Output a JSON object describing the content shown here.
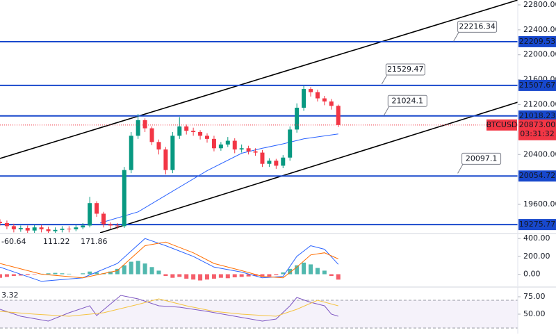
{
  "chart_data": [
    {
      "type": "candlestick",
      "x": [
        0,
        1,
        2,
        3,
        4,
        5,
        6,
        7,
        8,
        9,
        10,
        11,
        12,
        13,
        14,
        15,
        16,
        17,
        18,
        19,
        20,
        21,
        22,
        23,
        24,
        25,
        26,
        27,
        28,
        29,
        30,
        31,
        32,
        33,
        34,
        35,
        36,
        37,
        38,
        39,
        40,
        41,
        42,
        43,
        44,
        45,
        46,
        47,
        48,
        49
      ],
      "open": [
        19320,
        19300,
        19250,
        19200,
        19220,
        19180,
        19230,
        19200,
        19170,
        19190,
        19210,
        19200,
        19230,
        19260,
        19620,
        19450,
        19280,
        19260,
        19250,
        20150,
        20700,
        20950,
        20820,
        20600,
        20480,
        20150,
        20700,
        20850,
        20780,
        20760,
        20700,
        20650,
        20500,
        20560,
        20620,
        20480,
        20500,
        20450,
        20430,
        20250,
        20300,
        20220,
        20350,
        20800,
        21150,
        21450,
        21400,
        21300,
        21250,
        21180
      ],
      "high": [
        19360,
        19340,
        19290,
        19260,
        19260,
        19270,
        19270,
        19240,
        19230,
        19250,
        19250,
        19270,
        19300,
        19720,
        19650,
        19480,
        19310,
        19300,
        20200,
        20760,
        21050,
        20980,
        20850,
        20640,
        20520,
        20760,
        21000,
        20880,
        20830,
        20790,
        20740,
        20700,
        20600,
        20680,
        20660,
        20560,
        20540,
        20500,
        20470,
        20340,
        20330,
        20390,
        20850,
        21220,
        21500,
        21480,
        21440,
        21340,
        21290,
        21200
      ],
      "low": [
        19260,
        19200,
        19150,
        19160,
        19130,
        19140,
        19150,
        19120,
        19130,
        19150,
        19150,
        19170,
        19200,
        19230,
        19400,
        19230,
        19210,
        19200,
        19220,
        20100,
        20650,
        20760,
        20550,
        20400,
        20080,
        20100,
        20650,
        20720,
        20700,
        20640,
        20590,
        20450,
        20460,
        20520,
        20420,
        20430,
        20400,
        20380,
        20200,
        20200,
        20170,
        20180,
        20300,
        20750,
        21100,
        21330,
        21250,
        21190,
        21120,
        20840
      ],
      "close": [
        19300,
        19250,
        19200,
        19220,
        19180,
        19230,
        19200,
        19170,
        19190,
        19210,
        19200,
        19230,
        19260,
        19620,
        19450,
        19280,
        19260,
        19250,
        20150,
        20700,
        20950,
        20820,
        20600,
        20480,
        20150,
        20700,
        20850,
        20780,
        20760,
        20700,
        20650,
        20500,
        20560,
        20620,
        20480,
        20500,
        20450,
        20430,
        20250,
        20300,
        20220,
        20350,
        20800,
        21150,
        21450,
        21400,
        21300,
        21250,
        21180,
        20873
      ],
      "up_color": "#089981",
      "down_color": "#f23645",
      "xlim": [
        0,
        75
      ],
      "ylim": [
        19143,
        22878
      ],
      "yticks": [
        {
          "value": 22800,
          "label": "22800.00"
        },
        {
          "value": 22400,
          "label": "22400.00"
        },
        {
          "value": 22000,
          "label": "22000.00"
        },
        {
          "value": 21600,
          "label": "21600.00"
        },
        {
          "value": 21200,
          "label": "21200.00"
        },
        {
          "value": 20400,
          "label": "20400.00"
        },
        {
          "value": 19600,
          "label": "19600.00"
        }
      ],
      "moving_average": {
        "color": "#2962ff",
        "x": [
          14.5,
          20,
          25,
          30,
          35,
          38,
          41,
          44,
          49
        ],
        "values": [
          19300,
          19480,
          19810,
          20140,
          20420,
          20500,
          20570,
          20650,
          20730
        ]
      },
      "trendlines": [
        {
          "x": [
            0,
            75
          ],
          "values": [
            20336,
            22878
          ]
        },
        {
          "x": [
            14.5,
            75
          ],
          "values": [
            19143,
            21239
          ]
        }
      ],
      "trend_color": "#000000",
      "levels": [
        22209.53,
        21507.67,
        21018.23,
        20054.72,
        19275.77
      ],
      "level_color": "#1848cc",
      "annotations": [
        {
          "x": 65.7,
          "value": 22216.34
        },
        {
          "x": 55.3,
          "value": 21529.47
        },
        {
          "x": 55.6,
          "value": 21024.1
        },
        {
          "x": 66.3,
          "value": 20097.1
        }
      ],
      "symbol": "BTCUSD",
      "last_price": {
        "value": 20873,
        "label": "20873.00"
      },
      "countdown": "03:31:32"
    },
    {
      "type": "macd",
      "x": [
        0,
        1,
        2,
        3,
        4,
        5,
        6,
        7,
        8,
        9,
        10,
        11,
        12,
        13,
        14,
        15,
        16,
        17,
        18,
        19,
        20,
        21,
        22,
        23,
        24,
        25,
        26,
        27,
        28,
        29,
        30,
        31,
        32,
        33,
        34,
        35,
        36,
        37,
        38,
        39,
        40,
        41,
        42,
        43,
        44,
        45,
        46,
        47,
        48,
        49
      ],
      "histogram": [
        -40,
        -30,
        -20,
        -15,
        -10,
        -5,
        5,
        10,
        15,
        10,
        5,
        0,
        10,
        30,
        20,
        10,
        30,
        60,
        100,
        140,
        150,
        120,
        80,
        40,
        -20,
        -40,
        -30,
        -50,
        -60,
        -70,
        -60,
        -50,
        -40,
        -45,
        -35,
        -30,
        -25,
        -20,
        -30,
        -25,
        -10,
        20,
        60,
        100,
        130,
        110,
        70,
        40,
        -20,
        -60.64
      ],
      "up_color": "#26a69a",
      "down_color": "#f23645",
      "series": [
        {
          "color": "#2962ff",
          "x": [
            0,
            6,
            12,
            17,
            21,
            24,
            28,
            31,
            35,
            38,
            41,
            43,
            45,
            47,
            49
          ],
          "values": [
            80,
            -80,
            -40,
            120,
            400,
            320,
            200,
            80,
            24,
            -40,
            -24,
            200,
            320,
            280,
            111.22
          ]
        },
        {
          "color": "#ff6d00",
          "x": [
            0,
            6,
            12,
            17,
            21,
            24,
            28,
            31,
            35,
            38,
            41,
            43,
            45,
            47,
            49
          ],
          "values": [
            120,
            0,
            -40,
            40,
            320,
            360,
            240,
            120,
            40,
            -24,
            -40,
            80,
            216,
            240,
            171.86
          ]
        }
      ],
      "xlim": [
        0,
        75
      ],
      "ylim": [
        -136,
        456
      ],
      "yticks": [
        {
          "value": 400,
          "label": "400.00"
        },
        {
          "value": 200,
          "label": "200.00"
        },
        {
          "value": 0,
          "label": "0.00"
        }
      ]
    },
    {
      "type": "rsi",
      "label": "3.32",
      "band": [
        30,
        70
      ],
      "band_color": "#7e57c2",
      "series": [
        {
          "color": "#7e57c2",
          "x": [
            0,
            3,
            7,
            10,
            13,
            14,
            17.5,
            20,
            23,
            26,
            30,
            34,
            38,
            40,
            42,
            43,
            45,
            47,
            48,
            49
          ],
          "values": [
            57,
            47,
            40,
            52,
            62,
            48,
            77,
            72,
            62,
            60,
            54,
            47,
            40,
            43,
            62,
            74,
            67,
            62,
            50,
            47
          ]
        },
        {
          "color": "#f5c342",
          "x": [
            0,
            5,
            10,
            15,
            20,
            23,
            27,
            31,
            35,
            40,
            43,
            46,
            49
          ],
          "values": [
            54,
            50,
            47,
            52,
            64,
            72,
            62,
            54,
            50,
            47,
            57,
            70,
            62
          ]
        }
      ],
      "xlim": [
        0,
        75
      ],
      "ylim": [
        22,
        89
      ],
      "yticks": [
        {
          "value": 75,
          "label": "75.00"
        },
        {
          "value": 50,
          "label": "50.00"
        }
      ]
    }
  ]
}
